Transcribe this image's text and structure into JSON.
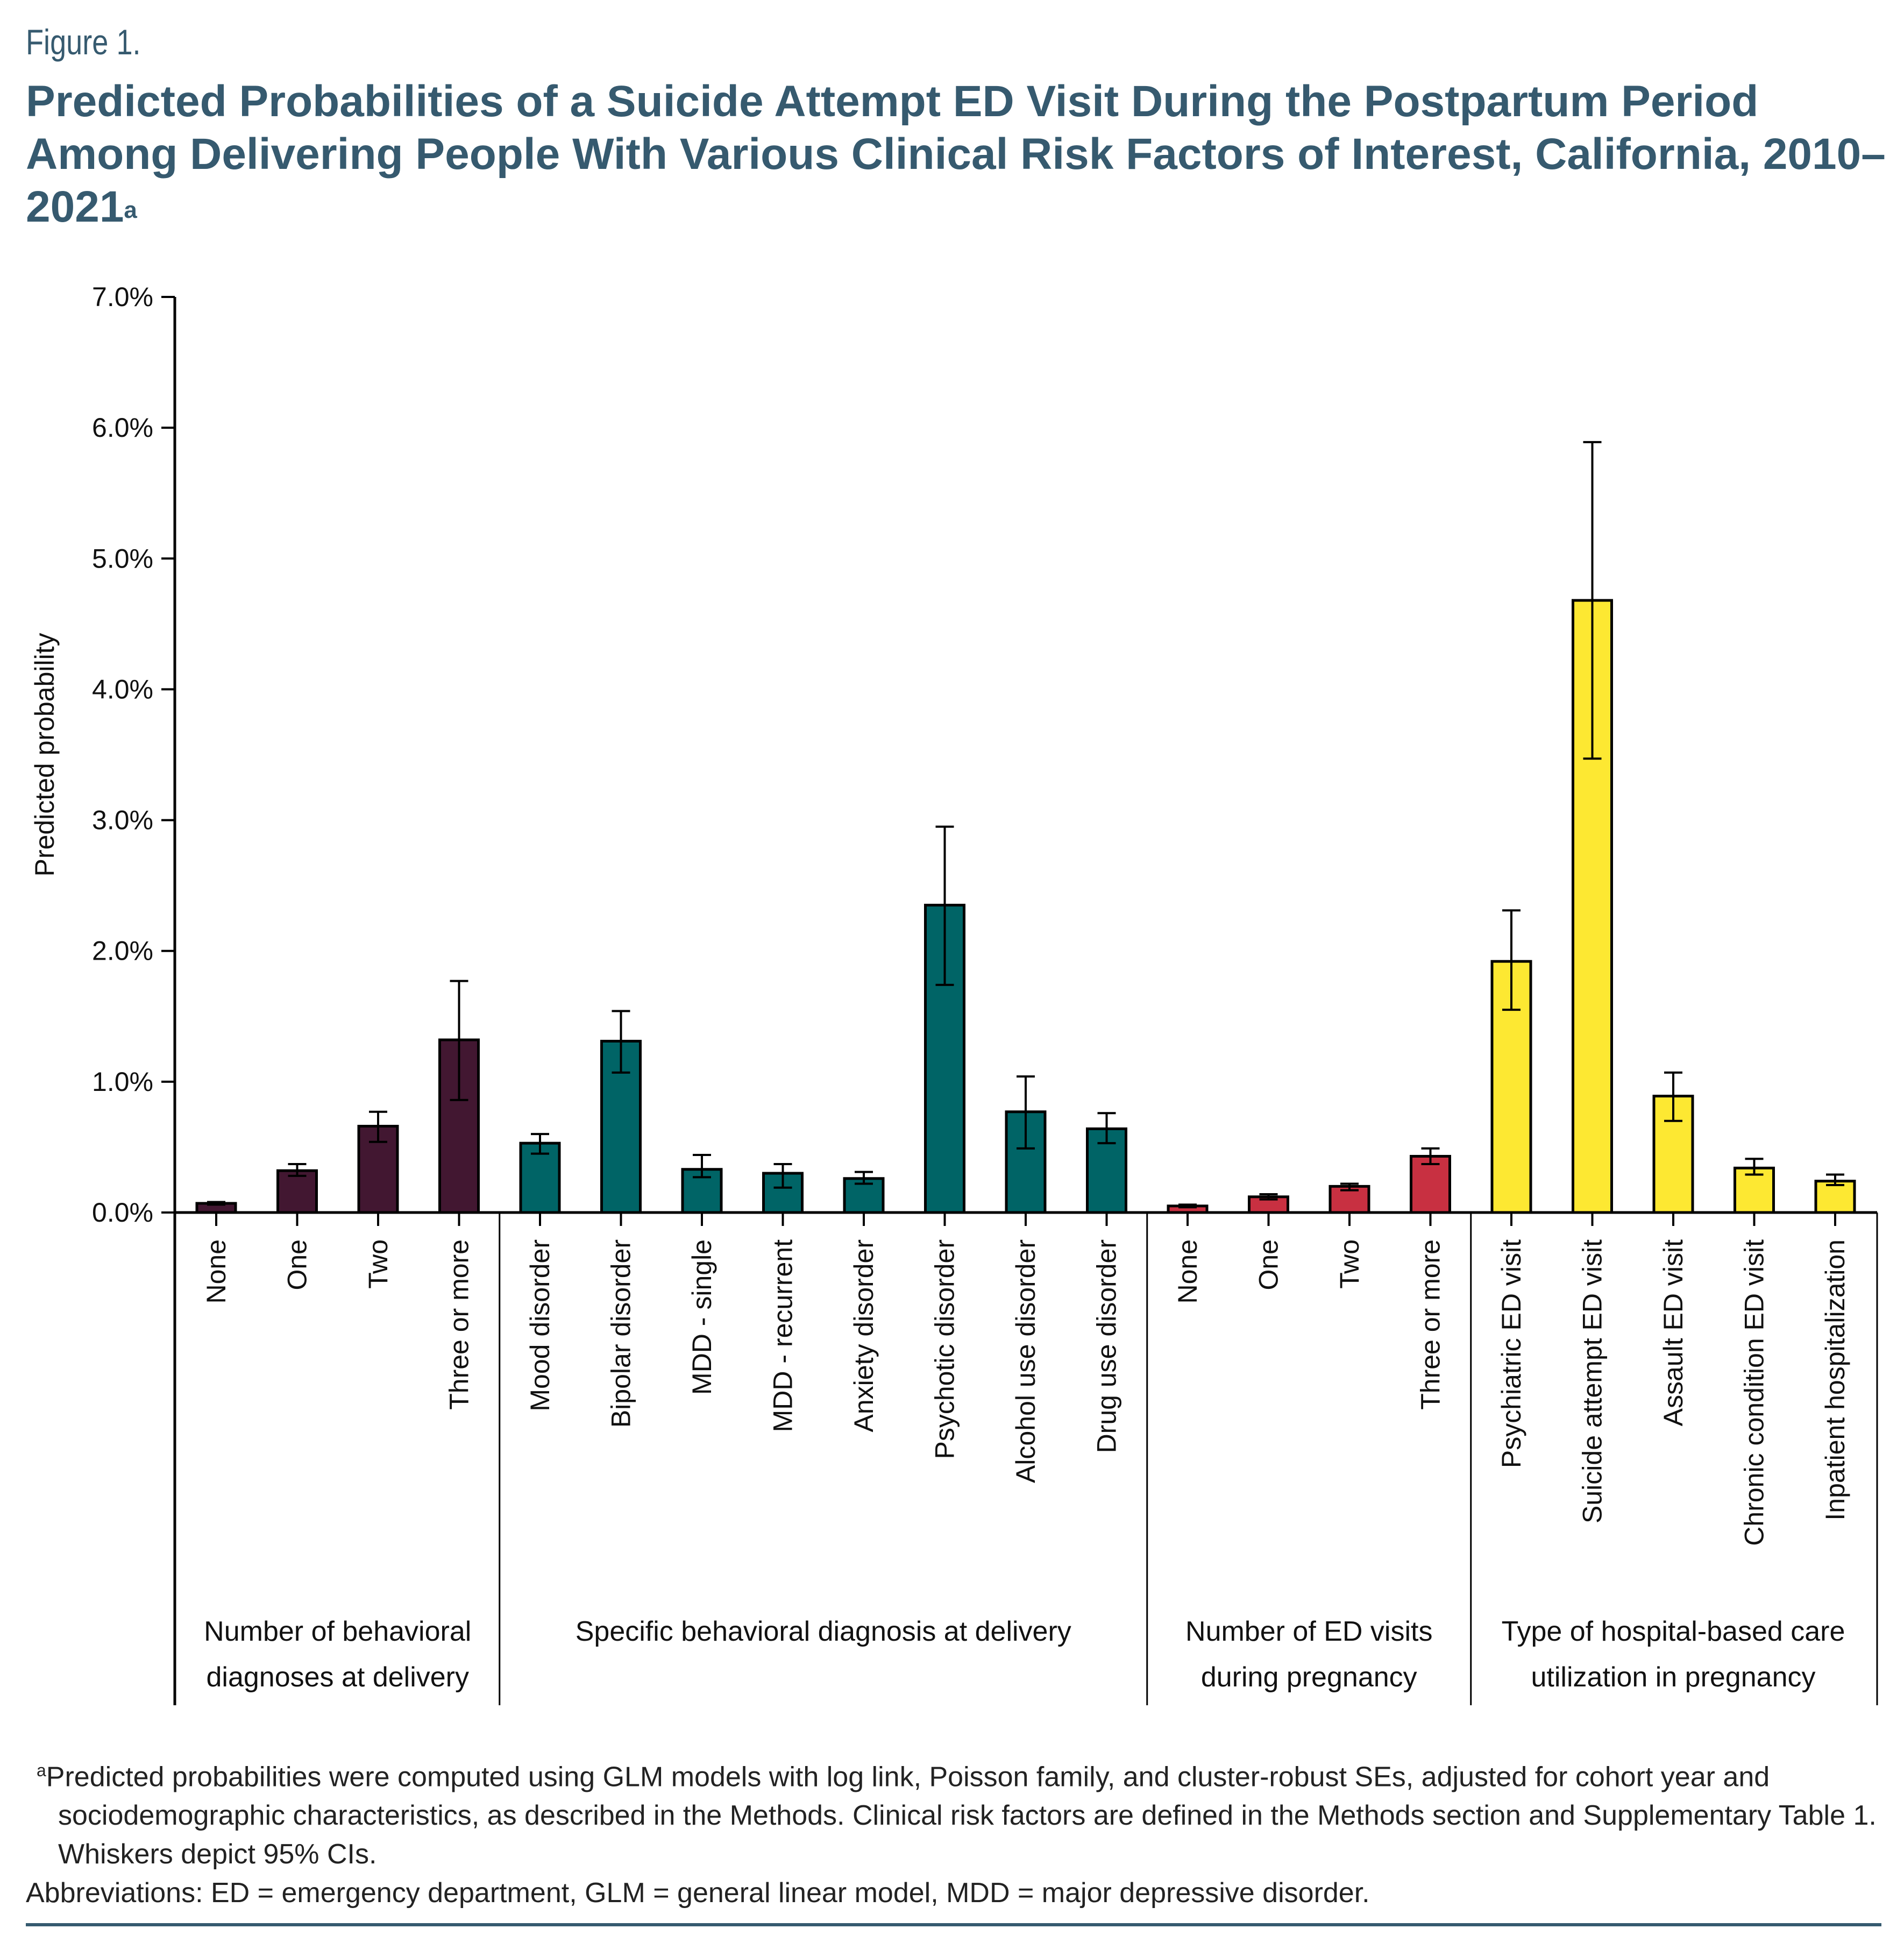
{
  "figure_label": "Figure 1.",
  "title": "Predicted Probabilities of a Suicide Attempt ED Visit During the Postpartum Period Among Delivering People With Various Clinical Risk Factors of Interest, California, 2010–2021",
  "title_superscript": "a",
  "colors": {
    "title": "#365A6F",
    "group1": "#421731",
    "group2": "#006466",
    "group3": "#C83041",
    "group4": "#FDE832"
  },
  "chart_data": {
    "type": "bar",
    "title": "Predicted Probabilities of a Suicide Attempt ED Visit During the Postpartum Period Among Delivering People With Various Clinical Risk Factors of Interest, California, 2010–2021",
    "xlabel": "",
    "ylabel": "Predicted probability",
    "ylim": [
      0,
      7.0
    ],
    "yunit": "%",
    "yticks": [
      "0.0%",
      "1.0%",
      "2.0%",
      "3.0%",
      "4.0%",
      "5.0%",
      "6.0%",
      "7.0%"
    ],
    "grid": false,
    "error_bars": "95% CI",
    "groups": [
      {
        "label_lines": [
          "Number of behavioral",
          "diagnoses at delivery"
        ],
        "color": "#421731",
        "categories": [
          "None",
          "One",
          "Two",
          "Three or more"
        ],
        "values": [
          0.07,
          0.32,
          0.66,
          1.32
        ],
        "ci_low": [
          0.06,
          0.28,
          0.54,
          0.86
        ],
        "ci_high": [
          0.08,
          0.37,
          0.77,
          1.77
        ]
      },
      {
        "label_lines": [
          "Specific behavioral diagnosis at delivery"
        ],
        "color": "#006466",
        "categories": [
          "Mood disorder",
          "Bipolar disorder",
          "MDD - single",
          "MDD - recurrent",
          "Anxiety disorder",
          "Psychotic disorder",
          "Alcohol use disorder",
          "Drug use disorder"
        ],
        "values": [
          0.53,
          1.31,
          0.33,
          0.3,
          0.26,
          2.35,
          0.77,
          0.64
        ],
        "ci_low": [
          0.45,
          1.07,
          0.27,
          0.19,
          0.22,
          1.74,
          0.49,
          0.53
        ],
        "ci_high": [
          0.6,
          1.54,
          0.44,
          0.37,
          0.31,
          2.95,
          1.04,
          0.76
        ]
      },
      {
        "label_lines": [
          "Number of ED visits",
          "during pregnancy"
        ],
        "color": "#C83041",
        "categories": [
          "None",
          "One",
          "Two",
          "Three or more"
        ],
        "values": [
          0.05,
          0.12,
          0.2,
          0.43
        ],
        "ci_low": [
          0.04,
          0.1,
          0.17,
          0.37
        ],
        "ci_high": [
          0.06,
          0.14,
          0.22,
          0.49
        ]
      },
      {
        "label_lines": [
          "Type of hospital-based care",
          "utilization in pregnancy"
        ],
        "color": "#FDE832",
        "categories": [
          "Psychiatric ED visit",
          "Suicide attempt ED visit",
          "Assault ED visit",
          "Chronic condition ED visit",
          "Inpatient hospitalization"
        ],
        "values": [
          1.92,
          4.68,
          0.89,
          0.34,
          0.24
        ],
        "ci_low": [
          1.55,
          3.47,
          0.7,
          0.29,
          0.21
        ],
        "ci_high": [
          2.31,
          5.89,
          1.07,
          0.41,
          0.29
        ]
      }
    ]
  },
  "footnotes": {
    "a_marker": "a",
    "a_text": "Predicted probabilities were computed using GLM models with log link, Poisson family, and cluster-robust SEs, adjusted for cohort year and sociodemographic characteristics, as described in the Methods. Clinical risk factors are defined in the Methods section and Supplementary Table 1. Whiskers depict 95% CIs.",
    "abbreviations": "Abbreviations: ED = emergency department, GLM = general linear model, MDD = major depressive disorder."
  }
}
